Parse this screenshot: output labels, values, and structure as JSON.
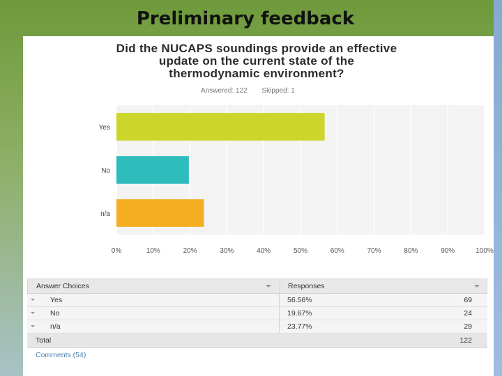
{
  "slide": {
    "title": "Preliminary feedback"
  },
  "question": {
    "title": "Did the NUCAPS soundings provide an effective update on the current state of the thermodynamic environment?",
    "answered": "Answered: 122",
    "skipped": "Skipped: 1"
  },
  "chart_data": {
    "type": "bar",
    "orientation": "horizontal",
    "categories": [
      "Yes",
      "No",
      "n/a"
    ],
    "values": [
      56.56,
      19.67,
      23.77
    ],
    "colors": [
      "#ccd62a",
      "#2fbcbc",
      "#f5ae22"
    ],
    "xlim": [
      0,
      100
    ],
    "xticks": [
      "0%",
      "10%",
      "20%",
      "30%",
      "40%",
      "50%",
      "60%",
      "70%",
      "80%",
      "90%",
      "100%"
    ],
    "grid": true
  },
  "table": {
    "header_choice": "Answer Choices",
    "header_responses": "Responses",
    "rows": [
      {
        "label": "Yes",
        "percent": "56.56%",
        "count": "69"
      },
      {
        "label": "No",
        "percent": "19.67%",
        "count": "24"
      },
      {
        "label": "n/a",
        "percent": "23.77%",
        "count": "29"
      }
    ],
    "total_label": "Total",
    "total_count": "122",
    "comments": "Comments (54)"
  }
}
